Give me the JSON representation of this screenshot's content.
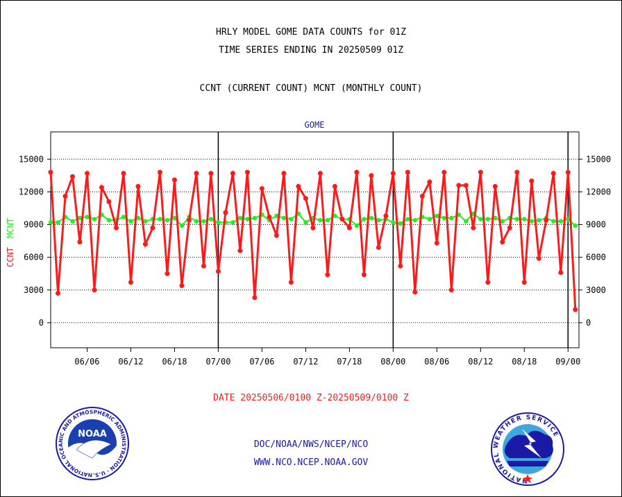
{
  "header": {
    "line1": "HRLY MODEL GOME DATA COUNTS for 01Z",
    "line2": "TIME SERIES ENDING IN 20250509 01Z",
    "line3": "CCNT (CURRENT COUNT) MCNT (MONTHLY COUNT)"
  },
  "chart_data": {
    "type": "line",
    "title": "GOME",
    "ylabel_left_red": "CCNT",
    "ylabel_left_green": "MCNT",
    "ylim": [
      -2300,
      17500
    ],
    "yticks": [
      0,
      3000,
      6000,
      9000,
      12000,
      15000
    ],
    "ytick_labels": [
      "0",
      "3000",
      "6000",
      "9000",
      "12000",
      "15000"
    ],
    "xticks": [
      "06/06",
      "06/12",
      "06/18",
      "07/00",
      "07/06",
      "07/12",
      "07/18",
      "08/00",
      "08/06",
      "08/12",
      "08/18",
      "09/00"
    ],
    "xtick_positions": [
      5,
      11,
      17,
      23,
      29,
      35,
      41,
      47,
      53,
      59,
      65,
      71
    ],
    "xlim": [
      0,
      72.5
    ],
    "day_separators": [
      23,
      47,
      71
    ],
    "grid": true,
    "series": [
      {
        "name": "CCNT",
        "color": "#ff1a1a",
        "values": [
          13800,
          2700,
          11600,
          13400,
          7400,
          13700,
          3000,
          12400,
          11100,
          8700,
          13700,
          3700,
          12500,
          7200,
          8700,
          13800,
          4500,
          13100,
          3400,
          9400,
          13700,
          5200,
          13700,
          4700,
          10100,
          13700,
          6600,
          13800,
          2300,
          12300,
          9700,
          8000,
          13700,
          3700,
          12500,
          11400,
          8700,
          13700,
          4400,
          12500,
          9500,
          8700,
          13800,
          4400,
          13500,
          6900,
          9800,
          13700,
          5200,
          13800,
          2800,
          11600,
          12900,
          7300,
          13800,
          3000,
          12600,
          12600,
          8700,
          13800,
          3700,
          12500,
          7400,
          8700,
          13800,
          3700,
          13000,
          5900,
          9400,
          13700,
          4600,
          13800,
          1200
        ]
      },
      {
        "name": "MCNT",
        "color": "#22ee22",
        "values": [
          9200,
          9200,
          9700,
          9300,
          9600,
          9700,
          9500,
          9900,
          9400,
          9400,
          9700,
          9300,
          9600,
          9300,
          9500,
          9500,
          9400,
          9600,
          8900,
          9700,
          9300,
          9300,
          9500,
          9200,
          9200,
          9200,
          9600,
          9500,
          9600,
          9900,
          9400,
          9800,
          9600,
          9500,
          10000,
          9200,
          9600,
          9400,
          9400,
          9800,
          9500,
          9500,
          8900,
          9500,
          9600,
          9400,
          9500,
          9200,
          9100,
          9500,
          9400,
          9700,
          9500,
          9800,
          9600,
          9600,
          9900,
          9300,
          10000,
          9500,
          9500,
          9600,
          9300,
          9600,
          9500,
          9500,
          9300,
          9400,
          9600,
          9300,
          9300,
          9500,
          8900
        ]
      }
    ]
  },
  "footer": {
    "date_range": "DATE 20250506/0100 Z-20250509/0100 Z",
    "org_link": "DOC/NOAA/NWS/NCEP/NCO",
    "web_link": "WWW.NCO.NCEP.NOAA.GOV",
    "noaa_logo_text": "NOAA",
    "noaa_ring_text": "NATIONAL OCEANIC AND ATMOSPHERIC ADMINISTRATION · U.S. DEPARTMENT OF COMMERCE ·",
    "nws_ring_text": "NATIONAL WEATHER SERVICE"
  }
}
